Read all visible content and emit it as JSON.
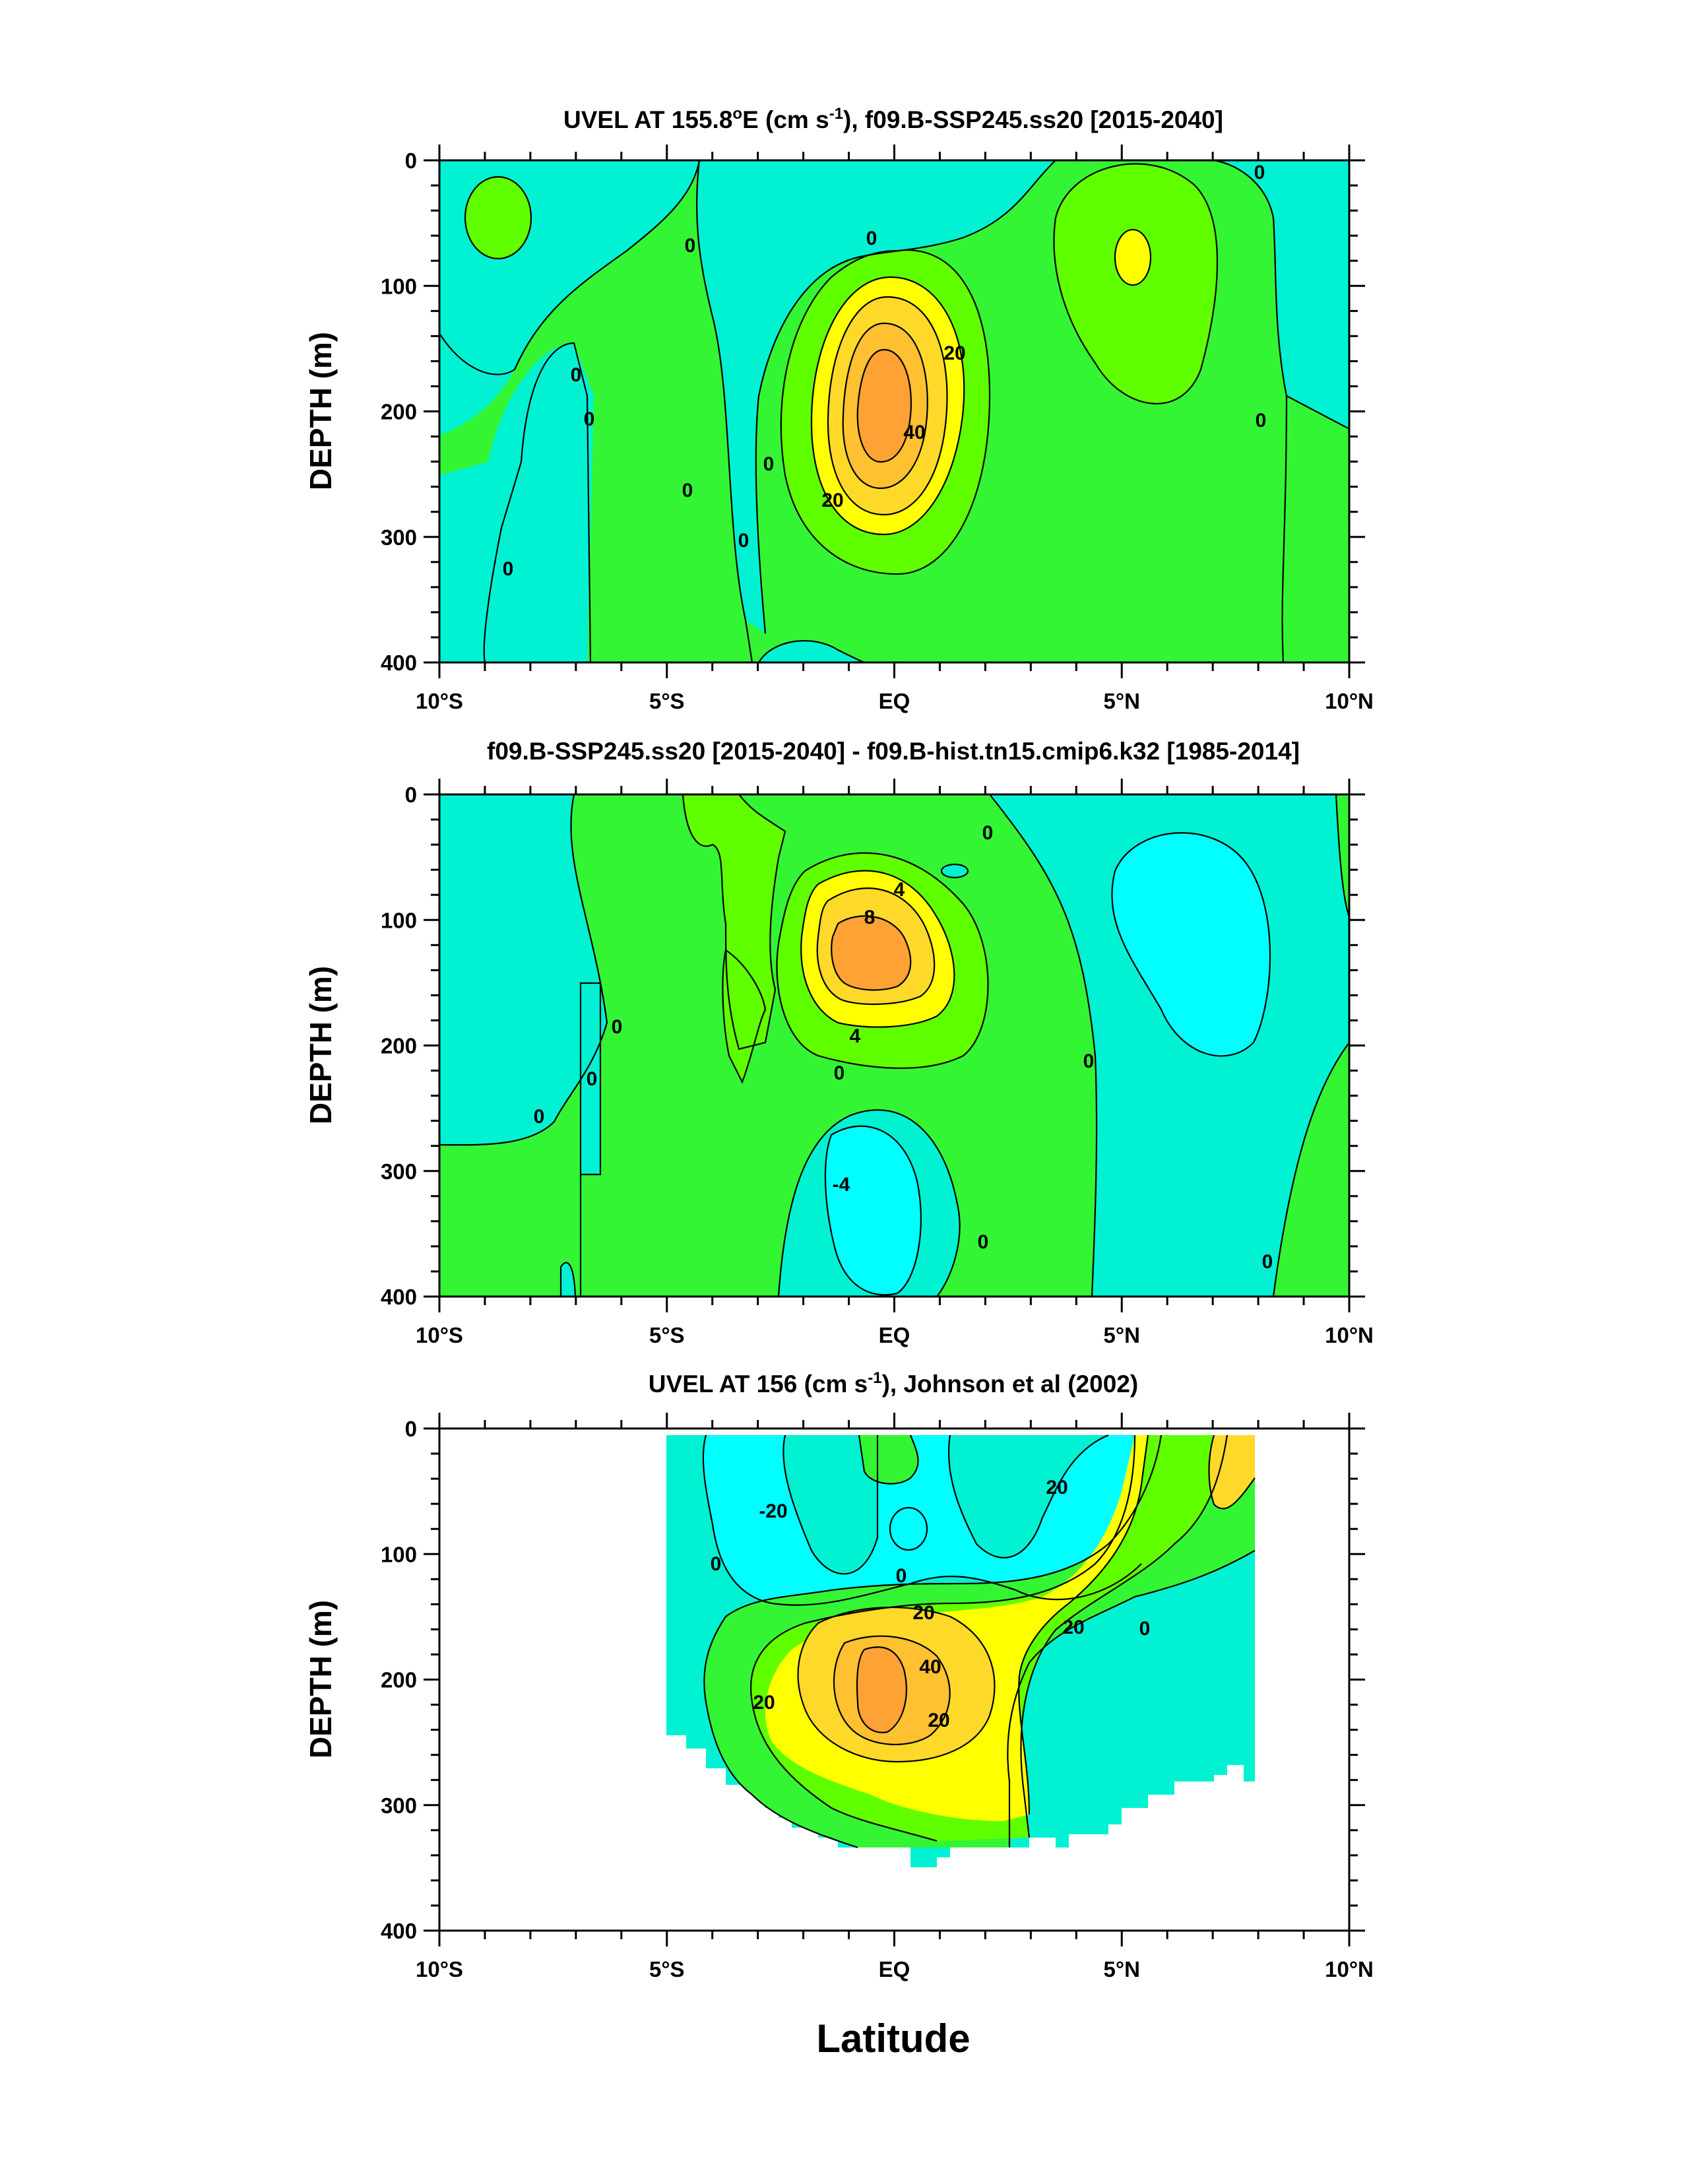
{
  "figure": {
    "xlabel": "Latitude",
    "colors": {
      "cyan": "#00FFFF",
      "aqua": "#00F2D2",
      "green": "#34F534",
      "lime": "#60FF00",
      "yellow": "#FFFF00",
      "gold": "#FFD92A",
      "orange": "#FFA235",
      "background": "#FFFFFF"
    }
  },
  "chart_data": [
    {
      "type": "heatmap",
      "subtype": "filled-contour",
      "title_parts": [
        "UVEL AT 155.8",
        "o",
        "E (cm s",
        "-1",
        "), f09.B-SSP245.ss20 [2015-2040]"
      ],
      "ylabel": "DEPTH (m)",
      "xlabel": "",
      "xlim": [
        -10,
        10
      ],
      "ylim": [
        0,
        400
      ],
      "y_reversed": true,
      "xticks": [
        {
          "value": -10,
          "label": "10°S"
        },
        {
          "value": -5,
          "label": "5°S"
        },
        {
          "value": 0,
          "label": "EQ"
        },
        {
          "value": 5,
          "label": "5°N"
        },
        {
          "value": 10,
          "label": "10°N"
        }
      ],
      "yticks": [
        0,
        100,
        200,
        300,
        400
      ],
      "contour_labels": [
        "0",
        "0",
        "0",
        "0",
        "0",
        "0",
        "0",
        "0",
        "0",
        "0",
        "20",
        "40",
        "20"
      ],
      "features": [
        {
          "kind": "max",
          "lat": -0.2,
          "depth": 180,
          "value": 45
        },
        {
          "kind": "max",
          "lat": 5.3,
          "depth": 80,
          "value": 22
        },
        {
          "kind": "max",
          "lat": -9.1,
          "depth": 50,
          "value": 12
        },
        {
          "kind": "min",
          "lat": -2.9,
          "depth": 380,
          "value": -3
        },
        {
          "kind": "min",
          "lat": 9.8,
          "depth": 100,
          "value": -6
        }
      ]
    },
    {
      "type": "heatmap",
      "subtype": "filled-contour",
      "title_parts": [
        "f09.B-SSP245.ss20 [2015-2040] - f09.B-hist.tn15.cmip6.k32 [1985-2014]"
      ],
      "ylabel": "DEPTH (m)",
      "xlabel": "",
      "xlim": [
        -10,
        10
      ],
      "ylim": [
        0,
        400
      ],
      "y_reversed": true,
      "xticks": [
        {
          "value": -10,
          "label": "10°S"
        },
        {
          "value": -5,
          "label": "5°S"
        },
        {
          "value": 0,
          "label": "EQ"
        },
        {
          "value": 5,
          "label": "5°N"
        },
        {
          "value": 10,
          "label": "10°N"
        }
      ],
      "yticks": [
        0,
        100,
        200,
        300,
        400
      ],
      "contour_labels": [
        "0",
        "0",
        "0",
        "0",
        "0",
        "0",
        "0",
        "4",
        "8",
        "4",
        "-4"
      ],
      "features": [
        {
          "kind": "max",
          "lat": -0.9,
          "depth": 140,
          "value": 9
        },
        {
          "kind": "min",
          "lat": -0.6,
          "depth": 320,
          "value": -5
        },
        {
          "kind": "min",
          "lat": 6.3,
          "depth": 120,
          "value": -3
        }
      ]
    },
    {
      "type": "heatmap",
      "subtype": "filled-contour",
      "title_parts": [
        "UVEL AT 156 (cm s",
        "-1",
        "), Johnson et al (2002)"
      ],
      "ylabel": "DEPTH (m)",
      "xlabel": "Latitude",
      "xlim": [
        -10,
        10
      ],
      "ylim": [
        0,
        400
      ],
      "y_reversed": true,
      "xticks": [
        {
          "value": -10,
          "label": "10°S"
        },
        {
          "value": -5,
          "label": "5°S"
        },
        {
          "value": 0,
          "label": "EQ"
        },
        {
          "value": 5,
          "label": "5°N"
        },
        {
          "value": 10,
          "label": "10°N"
        }
      ],
      "yticks": [
        0,
        100,
        200,
        300,
        400
      ],
      "contour_labels": [
        "-20",
        "0",
        "0",
        "0",
        "20",
        "20",
        "20",
        "40",
        "20",
        "20"
      ],
      "data_extent_lat": [
        -5,
        8
      ],
      "features": [
        {
          "kind": "max",
          "lat": -0.4,
          "depth": 205,
          "value": 45
        },
        {
          "kind": "min",
          "lat": -2.7,
          "depth": 90,
          "value": -25
        },
        {
          "kind": "max",
          "lat": 5.5,
          "depth": 40,
          "value": 25
        }
      ]
    }
  ]
}
